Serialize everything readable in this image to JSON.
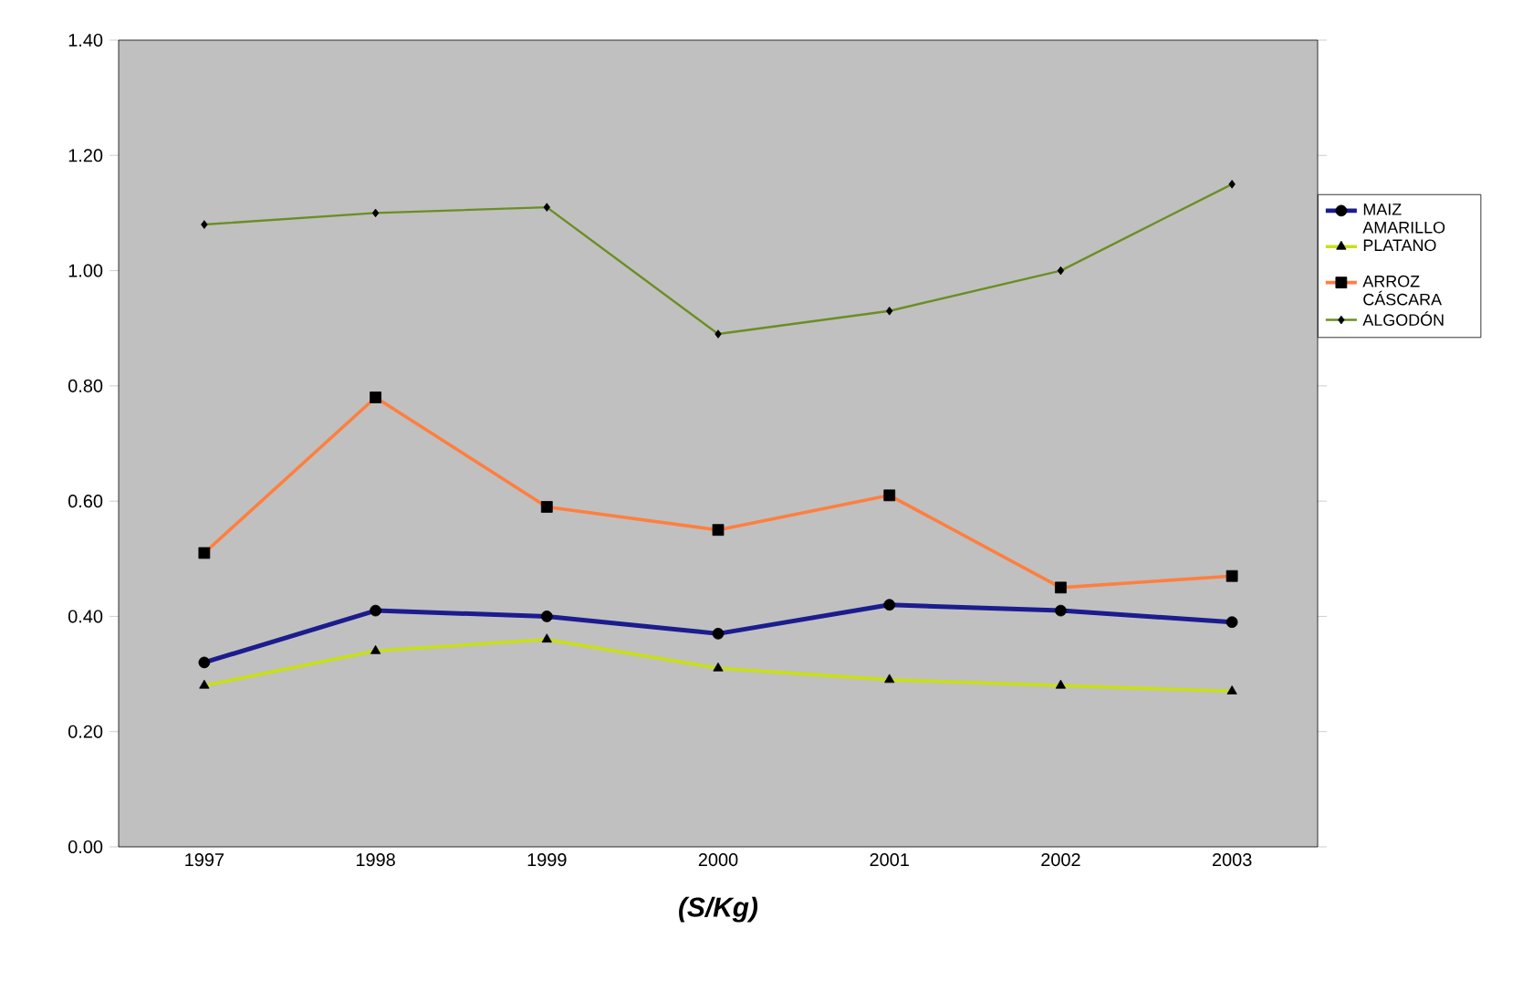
{
  "chart_data": {
    "type": "line",
    "xlabel": "(S/Kg)",
    "categories": [
      "1997",
      "1998",
      "1999",
      "2000",
      "2001",
      "2002",
      "2003"
    ],
    "series": [
      {
        "name": "MAIZ AMARILLO",
        "color": "#1c1c8f",
        "marker": "circle",
        "values": [
          0.32,
          0.41,
          0.4,
          0.37,
          0.42,
          0.41,
          0.39
        ]
      },
      {
        "name": "PLATANO",
        "color": "#c8e014",
        "marker": "triangle",
        "values": [
          0.28,
          0.34,
          0.36,
          0.31,
          0.29,
          0.28,
          0.27
        ]
      },
      {
        "name": "ARROZ CÁSCARA",
        "color": "#ff7f3f",
        "marker": "square",
        "values": [
          0.51,
          0.78,
          0.59,
          0.55,
          0.61,
          0.45,
          0.47
        ]
      },
      {
        "name": "ALGODÓN",
        "color": "#6b8e23",
        "marker": "diamond",
        "values": [
          1.08,
          1.1,
          1.11,
          0.89,
          0.93,
          1.0,
          1.15
        ]
      }
    ],
    "ylim": [
      0,
      1.4
    ],
    "yticks": [
      {
        "value": 0,
        "label": "0.00"
      },
      {
        "value": 0.2,
        "label": "0.20"
      },
      {
        "value": 0.4,
        "label": "0.40"
      },
      {
        "value": 0.6,
        "label": "0.60"
      },
      {
        "value": 0.8,
        "label": "0.80"
      },
      {
        "value": 1.0,
        "label": "1.00"
      },
      {
        "value": 1.2,
        "label": "1.20"
      },
      {
        "value": 1.4,
        "label": "1.40"
      }
    ],
    "legend": "right",
    "grid": false,
    "line_style": "solid"
  }
}
